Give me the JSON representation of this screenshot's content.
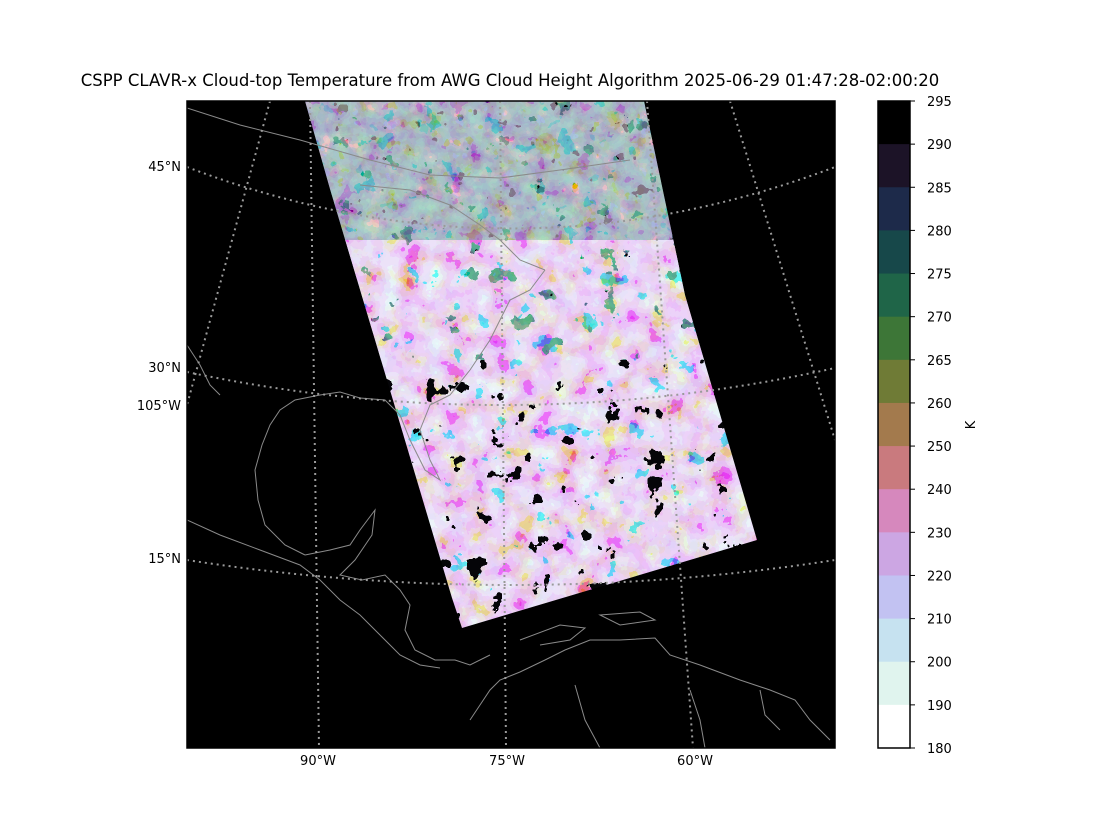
{
  "title": "CSPP CLAVR-x Cloud-top Temperature from AWG Cloud Height Algorithm 2025-06-29 01:47:28-02:00:20",
  "map": {
    "lat_labels": [
      "45°N",
      "30°N",
      "15°N"
    ],
    "lon_label_left": "105°W",
    "lon_labels_bottom": [
      "90°W",
      "75°W",
      "60°W"
    ],
    "background_color": "#000000",
    "coastline_color": "#8a8a8a",
    "gridline_color": "#9a9a9a"
  },
  "colorbar": {
    "unit_label": "K",
    "tick_labels": [
      "295",
      "290",
      "285",
      "280",
      "275",
      "270",
      "265",
      "260",
      "250",
      "240",
      "230",
      "220",
      "210",
      "200",
      "190",
      "180"
    ],
    "bins": [
      {
        "range": "290-295",
        "color": "#000000"
      },
      {
        "range": "285-290",
        "color": "#1c1327"
      },
      {
        "range": "280-285",
        "color": "#1d2a4a"
      },
      {
        "range": "275-280",
        "color": "#17484a"
      },
      {
        "range": "270-275",
        "color": "#1f6548"
      },
      {
        "range": "265-270",
        "color": "#3d7637"
      },
      {
        "range": "260-265",
        "color": "#6f7b36"
      },
      {
        "range": "250-260",
        "color": "#a37a4d"
      },
      {
        "range": "240-250",
        "color": "#c97a7e"
      },
      {
        "range": "230-240",
        "color": "#d688bd"
      },
      {
        "range": "220-230",
        "color": "#cca6e3"
      },
      {
        "range": "210-220",
        "color": "#c2c2f2"
      },
      {
        "range": "200-210",
        "color": "#c6e2f0"
      },
      {
        "range": "190-200",
        "color": "#e0f4ee"
      },
      {
        "range": "180-190",
        "color": "#ffffff"
      }
    ]
  }
}
